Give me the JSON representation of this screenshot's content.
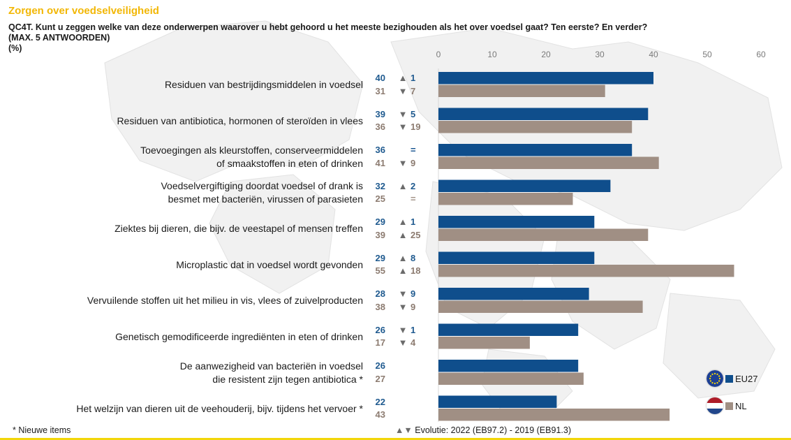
{
  "header": {
    "title": "Zorgen over voedselveiligheid",
    "question_line1": "QC4T. Kunt u zeggen welke van deze onderwerpen waarover u hebt gehoord u het meeste bezighouden als het over voedsel gaat? Ten eerste? En verder?",
    "question_line2": "(MAX. 5 ANTWOORDEN)",
    "question_line3": "(%)"
  },
  "colors": {
    "eu": "#0f4e8c",
    "nl": "#a08f84",
    "title": "#f2b705"
  },
  "chart_data": {
    "type": "bar",
    "orientation": "horizontal",
    "xlim": [
      0,
      60
    ],
    "ticks": [
      "0",
      "10",
      "20",
      "30",
      "40",
      "50",
      "60"
    ],
    "grid": false,
    "legend_position": "bottom-right",
    "categories": [
      [
        "Residuen van bestrijdingsmiddelen in voedsel"
      ],
      [
        "Residuen van antibiotica, hormonen of steroïden in vlees"
      ],
      [
        "Toevoegingen als kleurstoffen, conserveermiddelen",
        "of smaakstoffen in eten of drinken"
      ],
      [
        "Voedselvergiftiging doordat voedsel of drank is",
        "besmet met bacteriën, virussen of parasieten"
      ],
      [
        "Ziektes bij dieren, die bijv. de veestapel of mensen treffen"
      ],
      [
        "Microplastic dat in voedsel wordt gevonden"
      ],
      [
        "Vervuilende stoffen uit het milieu in vis, vlees of zuivelproducten"
      ],
      [
        "Genetisch gemodificeerde ingrediënten in eten of drinken"
      ],
      [
        "De aanwezigheid van bacteriën in voedsel",
        "die resistent zijn tegen antibiotica *"
      ],
      [
        "Het welzijn van dieren uit de veehouderij, bijv. tijdens het vervoer *"
      ]
    ],
    "series": [
      {
        "name": "EU27",
        "values": [
          40,
          39,
          36,
          32,
          29,
          29,
          28,
          26,
          26,
          22
        ],
        "evolution": [
          [
            "▲",
            "1"
          ],
          [
            "▼",
            "5"
          ],
          [
            "",
            "="
          ],
          [
            "▲",
            "2"
          ],
          [
            "▲",
            "1"
          ],
          [
            "▲",
            "8"
          ],
          [
            "▼",
            "9"
          ],
          [
            "▼",
            "1"
          ],
          [
            "",
            ""
          ],
          [
            "",
            ""
          ]
        ]
      },
      {
        "name": "NL",
        "values": [
          31,
          36,
          41,
          25,
          39,
          55,
          38,
          17,
          27,
          43
        ],
        "evolution": [
          [
            "▼",
            "7"
          ],
          [
            "▼",
            "19"
          ],
          [
            "▼",
            "9"
          ],
          [
            "",
            "="
          ],
          [
            "▲",
            "25"
          ],
          [
            "▲",
            "18"
          ],
          [
            "▼",
            "9"
          ],
          [
            "▼",
            "4"
          ],
          [
            "",
            ""
          ],
          [
            "",
            ""
          ]
        ]
      }
    ]
  },
  "footer": {
    "footnote": "* Nieuwe items",
    "evolution_arrows": "▲▼",
    "evolution_text": "Evolutie: 2022 (EB97.2) - 2019 (EB91.3)"
  }
}
